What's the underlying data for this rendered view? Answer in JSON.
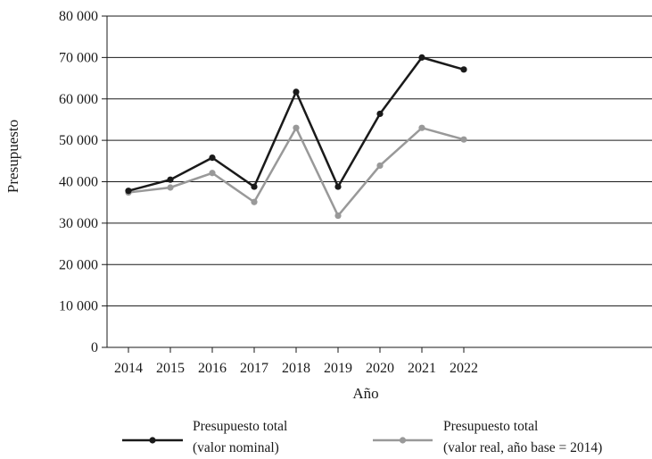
{
  "chart_data": {
    "type": "line",
    "title": "",
    "xlabel": "Año",
    "ylabel": "Presupuesto",
    "categories": [
      "2014",
      "2015",
      "2016",
      "2017",
      "2018",
      "2019",
      "2020",
      "2021",
      "2022"
    ],
    "yticks": [
      "0",
      "10 000",
      "20 000",
      "30 000",
      "40 000",
      "50 000",
      "60 000",
      "70 000",
      "80 000"
    ],
    "ylim": [
      0,
      80000
    ],
    "grid": "horizontal",
    "legend_position": "bottom",
    "series": [
      {
        "name": "Presupuesto total (valor nominal)",
        "legend_lines": [
          "Presupuesto total",
          "(valor nominal)"
        ],
        "color": "#1a1a1a",
        "values": [
          37800,
          40500,
          45800,
          38800,
          61700,
          38800,
          56400,
          70000,
          67100
        ]
      },
      {
        "name": "Presupuesto total (valor real, año base = 2014)",
        "legend_lines": [
          "Presupuesto total",
          "(valor real, año base = 2014)"
        ],
        "color": "#999999",
        "values": [
          37400,
          38600,
          42100,
          35100,
          53000,
          31800,
          43900,
          53000,
          50200
        ]
      }
    ]
  }
}
